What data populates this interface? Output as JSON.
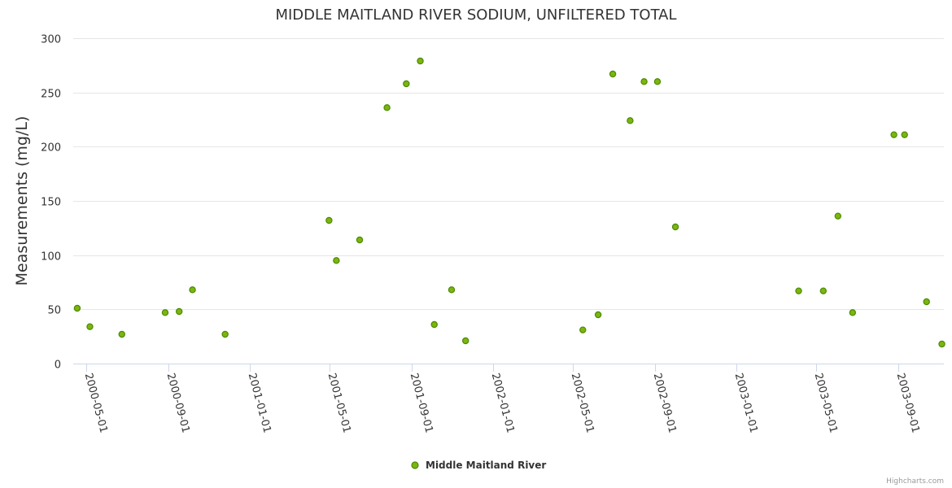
{
  "chart_data": {
    "type": "scatter",
    "title": "MIDDLE MAITLAND RIVER SODIUM, UNFILTERED TOTAL",
    "xlabel": "",
    "ylabel": "Measurements (mg/L)",
    "x_type": "date",
    "xlim": [
      "2000-04-11",
      "2003-11-09"
    ],
    "ylim": [
      0,
      300
    ],
    "y_ticks": [
      0,
      50,
      100,
      150,
      200,
      250,
      300
    ],
    "x_ticks": [
      "2000-05-01",
      "2000-09-01",
      "2001-01-01",
      "2001-05-01",
      "2001-09-01",
      "2002-01-01",
      "2002-05-01",
      "2002-09-01",
      "2003-01-01",
      "2003-05-01",
      "2003-09-01"
    ],
    "grid": true,
    "legend_position": "bottom-center",
    "series": [
      {
        "name": "Middle Maitland River",
        "color": "#7cb50f",
        "border_color": "#4a8a00",
        "points": [
          {
            "x": "2000-04-17",
            "y": 51
          },
          {
            "x": "2000-05-06",
            "y": 34
          },
          {
            "x": "2000-06-23",
            "y": 27
          },
          {
            "x": "2000-08-27",
            "y": 47
          },
          {
            "x": "2000-09-17",
            "y": 48
          },
          {
            "x": "2000-10-07",
            "y": 68
          },
          {
            "x": "2000-11-25",
            "y": 27
          },
          {
            "x": "2001-04-30",
            "y": 132
          },
          {
            "x": "2001-05-11",
            "y": 95
          },
          {
            "x": "2001-06-15",
            "y": 114
          },
          {
            "x": "2001-07-26",
            "y": 236
          },
          {
            "x": "2001-08-24",
            "y": 258
          },
          {
            "x": "2001-09-14",
            "y": 279
          },
          {
            "x": "2001-10-05",
            "y": 36
          },
          {
            "x": "2001-10-31",
            "y": 68
          },
          {
            "x": "2001-11-21",
            "y": 21
          },
          {
            "x": "2002-05-16",
            "y": 31
          },
          {
            "x": "2002-06-08",
            "y": 45
          },
          {
            "x": "2002-06-30",
            "y": 267
          },
          {
            "x": "2002-07-26",
            "y": 224
          },
          {
            "x": "2002-08-16",
            "y": 260
          },
          {
            "x": "2002-09-05",
            "y": 260
          },
          {
            "x": "2002-10-02",
            "y": 126
          },
          {
            "x": "2003-04-05",
            "y": 67
          },
          {
            "x": "2003-05-12",
            "y": 67
          },
          {
            "x": "2003-06-03",
            "y": 136
          },
          {
            "x": "2003-06-25",
            "y": 47
          },
          {
            "x": "2003-08-26",
            "y": 211
          },
          {
            "x": "2003-09-11",
            "y": 211
          },
          {
            "x": "2003-10-14",
            "y": 57
          },
          {
            "x": "2003-11-06",
            "y": 18
          }
        ]
      }
    ],
    "credits": "Highcharts.com"
  }
}
